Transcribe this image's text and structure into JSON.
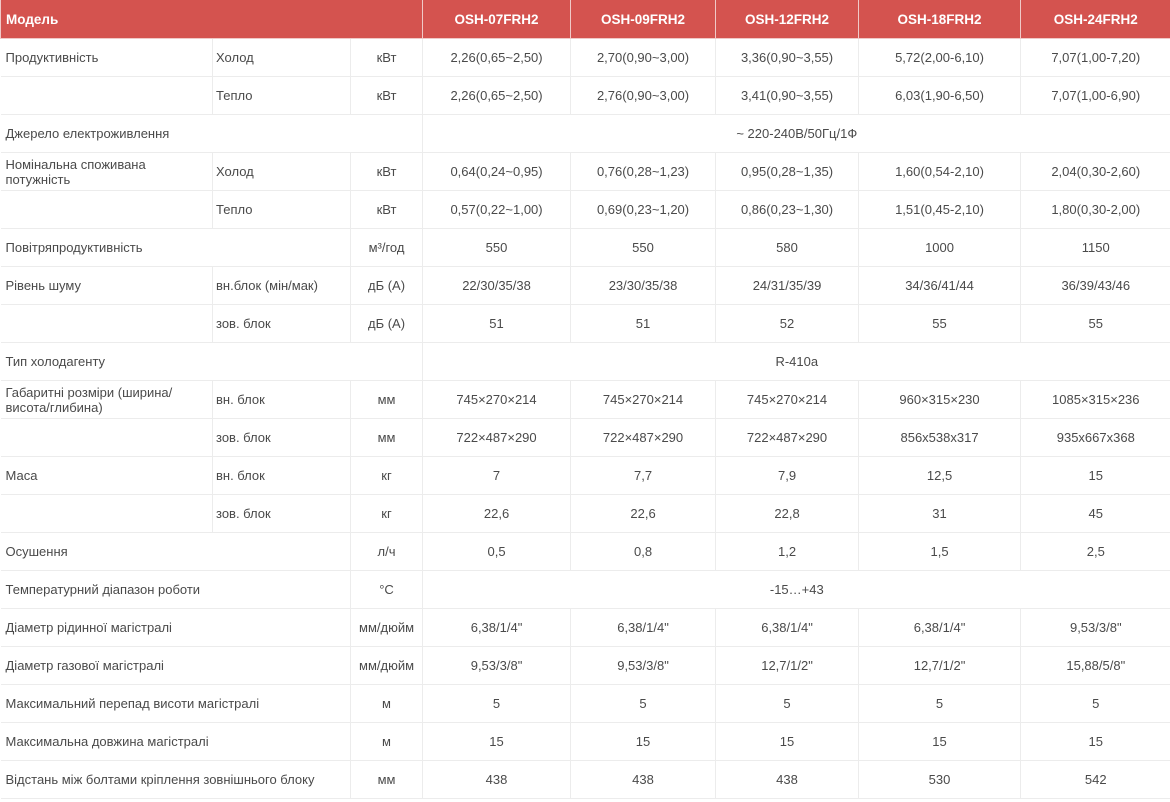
{
  "header": {
    "model_label": "Модель",
    "models": [
      "OSH-07FRH2",
      "OSH-09FRH2",
      "OSH-12FRH2",
      "OSH-18FRH2",
      "OSH-24FRH2"
    ]
  },
  "colors": {
    "header_bg": "#d4534f",
    "header_text": "#ffffff",
    "text": "#4a4a4a",
    "grid": "#ececec"
  },
  "rows": [
    {
      "label": "Продуктивність",
      "sub": "Холод",
      "unit": "кВт",
      "values": [
        "2,26(0,65~2,50)",
        "2,70(0,90~3,00)",
        "3,36(0,90~3,55)",
        "5,72(2,00-6,10)",
        "7,07(1,00-7,20)"
      ]
    },
    {
      "label": "",
      "sub": "Тепло",
      "unit": "кВт",
      "values": [
        "2,26(0,65~2,50)",
        "2,76(0,90~3,00)",
        "3,41(0,90~3,55)",
        "6,03(1,90-6,50)",
        "7,07(1,00-6,90)"
      ]
    },
    {
      "label": "Джерело електроживлення",
      "all": "~ 220-240В/50Гц/1Ф"
    },
    {
      "label": "Номінальна споживана потужність",
      "sub": "Холод",
      "unit": "кВт",
      "values": [
        "0,64(0,24~0,95)",
        "0,76(0,28~1,23)",
        "0,95(0,28~1,35)",
        "1,60(0,54-2,10)",
        "2,04(0,30-2,60)"
      ]
    },
    {
      "label": "",
      "sub": "Тепло",
      "unit": "кВт",
      "values": [
        "0,57(0,22~1,00)",
        "0,69(0,23~1,20)",
        "0,86(0,23~1,30)",
        "1,51(0,45-2,10)",
        "1,80(0,30-2,00)"
      ]
    },
    {
      "label": "Повітряпродуктивність",
      "unit": "м³/год",
      "values": [
        "550",
        "550",
        "580",
        "1000",
        "1150"
      ]
    },
    {
      "label": "Рівень шуму",
      "sub": "вн.блок (мін/мак)",
      "unit": "дБ (А)",
      "values": [
        "22/30/35/38",
        "23/30/35/38",
        "24/31/35/39",
        "34/36/41/44",
        "36/39/43/46"
      ]
    },
    {
      "label": "",
      "sub": "зов. блок",
      "unit": "дБ (А)",
      "values": [
        "51",
        "51",
        "52",
        "55",
        "55"
      ]
    },
    {
      "label": "Тип холодагенту",
      "all": "R-410a"
    },
    {
      "label": "Габаритні розміри (ширина/висота/глибина)",
      "sub": "вн. блок",
      "unit": "мм",
      "values": [
        "745×270×214",
        "745×270×214",
        "745×270×214",
        "960×315×230",
        "1085×315×236"
      ]
    },
    {
      "label": "",
      "sub": "зов. блок",
      "unit": "мм",
      "values": [
        "722×487×290",
        "722×487×290",
        "722×487×290",
        "856x538x317",
        "935x667x368"
      ]
    },
    {
      "label": "Маса",
      "sub": "вн. блок",
      "unit": "кг",
      "values": [
        "7",
        "7,7",
        "7,9",
        "12,5",
        "15"
      ]
    },
    {
      "label": "",
      "sub": "зов. блок",
      "unit": "кг",
      "values": [
        "22,6",
        "22,6",
        "22,8",
        "31",
        "45"
      ]
    },
    {
      "label": "Осушення",
      "unit": "л/ч",
      "values": [
        "0,5",
        "0,8",
        "1,2",
        "1,5",
        "2,5"
      ]
    },
    {
      "label": "Температурний діапазон роботи",
      "unit": "°C",
      "all": "-15…+43"
    },
    {
      "label": "Діаметр рідинної магістралі",
      "unit": "мм/дюйм",
      "values": [
        "6,38/1/4\"",
        "6,38/1/4\"",
        "6,38/1/4\"",
        "6,38/1/4\"",
        "9,53/3/8\""
      ]
    },
    {
      "label": "Діаметр газової магістралі",
      "unit": "мм/дюйм",
      "values": [
        "9,53/3/8\"",
        "9,53/3/8\"",
        "12,7/1/2\"",
        "12,7/1/2\"",
        "15,88/5/8\""
      ]
    },
    {
      "label": "Максимальний перепад висоти магістралі",
      "unit": "м",
      "values": [
        "5",
        "5",
        "5",
        "5",
        "5"
      ]
    },
    {
      "label": "Максимальна довжина магістралі",
      "unit": "м",
      "values": [
        "15",
        "15",
        "15",
        "15",
        "15"
      ]
    },
    {
      "label": "Відстань між болтами кріплення зовнішнього блоку",
      "unit": "мм",
      "values": [
        "438",
        "438",
        "438",
        "530",
        "542"
      ]
    }
  ]
}
